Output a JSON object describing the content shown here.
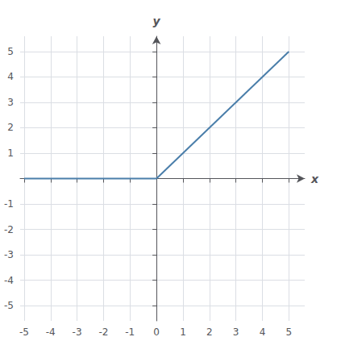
{
  "chart_data": {
    "type": "line",
    "xlabel": "x",
    "ylabel": "y",
    "series": [
      {
        "color": "#4a7eaa",
        "x": [
          -5,
          0
        ],
        "values": [
          0,
          0
        ]
      },
      {
        "color": "#4a7eaa",
        "x": [
          0,
          5
        ],
        "values": [
          0,
          5
        ]
      }
    ],
    "xlim": [
      -5.15,
      5.6
    ],
    "ylim": [
      -5.6,
      5.6
    ],
    "xticks": [
      -5,
      -4,
      -3,
      -2,
      -1,
      0,
      1,
      2,
      3,
      4,
      5
    ],
    "yticks": [
      -5,
      -4,
      -3,
      -2,
      -1,
      1,
      2,
      3,
      4,
      5
    ],
    "grid": true
  }
}
